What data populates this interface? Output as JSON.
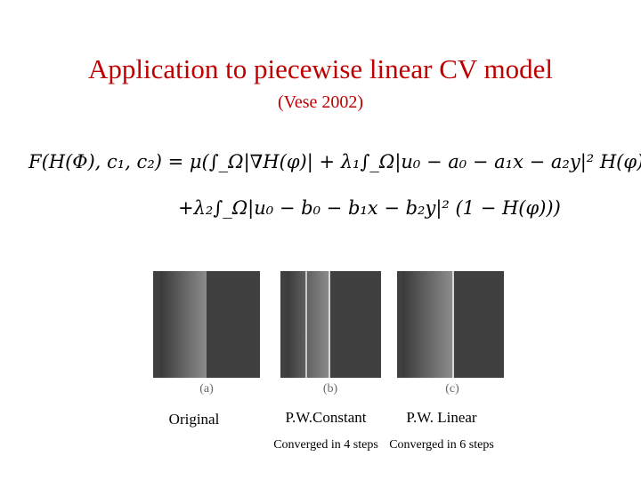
{
  "header": {
    "title": "Application to piecewise linear CV model",
    "subtitle": "(Vese 2002)"
  },
  "equation": {
    "line1": "F(H(Φ), c₁, c₂) = μ(∫_Ω|∇H(φ)| + λ₁∫_Ω|u₀ − a₀ − a₁x − a₂y|² H(φ)",
    "line2": "+λ₂∫_Ω|u₀ − b₀ − b₁x − b₂y|² (1 − H(φ)))"
  },
  "panels": [
    {
      "label": "(a)",
      "caption": "Original"
    },
    {
      "label": "(b)",
      "caption": "P.W.Constant",
      "note": "Converged in 4 steps"
    },
    {
      "label": "(c)",
      "caption": "P.W. Linear",
      "note": "Converged in 6 steps"
    }
  ]
}
